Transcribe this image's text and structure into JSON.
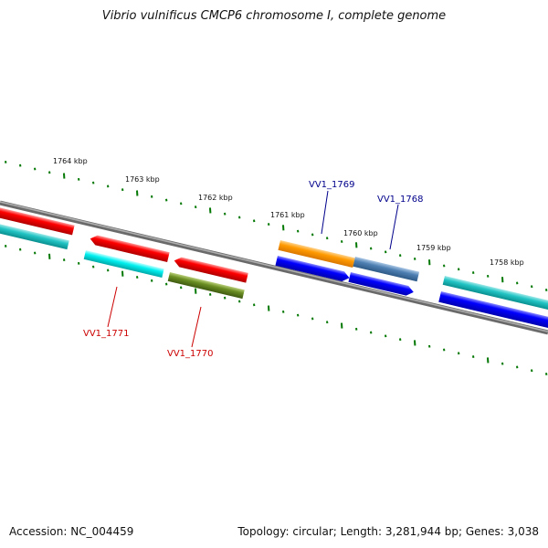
{
  "title": "Vibrio vulnificus CMCP6 chromosome I, complete genome",
  "footer": {
    "accession": "Accession: NC_004459",
    "stats": "Topology: circular; Length: 3,281,944 bp; Genes: 3,038"
  },
  "kbp_labels": [
    "1764 kbp",
    "1763 kbp",
    "1762 kbp",
    "1761 kbp",
    "1760 kbp",
    "1759 kbp",
    "1758 kbp"
  ],
  "gene_labels": [
    {
      "name": "VV1_1769",
      "color": "#00008b"
    },
    {
      "name": "VV1_1768",
      "color": "#00008b"
    },
    {
      "name": "VV1_1771",
      "color": "#cc0000"
    },
    {
      "name": "VV1_1770",
      "color": "#cc0000"
    }
  ],
  "colors": {
    "backbone": "#808080",
    "red": "#ee0000",
    "cyan": "#00dddd",
    "teal": "#11bbbb",
    "olive": "#6b8e23",
    "orange": "#ff9900",
    "steel": "#4f7fb0",
    "blue": "#0000ee",
    "tick": "#007700"
  }
}
